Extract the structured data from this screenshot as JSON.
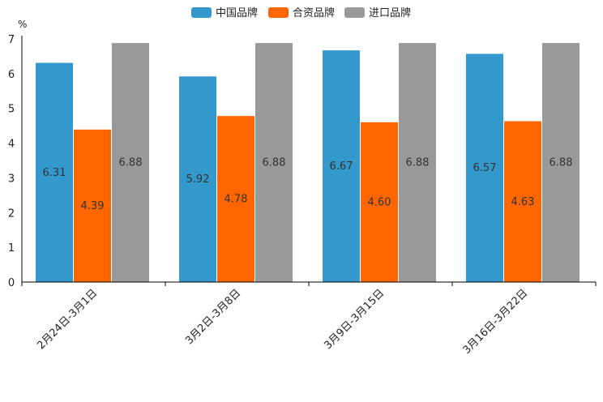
{
  "chart_data": {
    "type": "bar",
    "title": "",
    "ylabel": "%",
    "xlabel": "",
    "ylim": [
      0,
      7
    ],
    "yticks": [
      "0",
      "1",
      "2",
      "3",
      "4",
      "5",
      "6",
      "7"
    ],
    "categories": [
      "2月24日-3月1日",
      "3月2日-3月8日",
      "3月9日-3月15日",
      "3月16日-3月22日"
    ],
    "series": [
      {
        "name": "中国品牌",
        "color": "#3399cc",
        "values": [
          6.31,
          5.92,
          6.67,
          6.57
        ],
        "labels": [
          "6.31",
          "5.92",
          "6.67",
          "6.57"
        ]
      },
      {
        "name": "合资品牌",
        "color": "#ff6600",
        "values": [
          4.39,
          4.78,
          4.6,
          4.63
        ],
        "labels": [
          "4.39",
          "4.78",
          "4.60",
          "4.63"
        ]
      },
      {
        "name": "进口品牌",
        "color": "#999999",
        "values": [
          6.88,
          6.88,
          6.88,
          6.88
        ],
        "labels": [
          "6.88",
          "6.88",
          "6.88",
          "6.88"
        ]
      }
    ],
    "legend_position": "top-center",
    "grid": false
  }
}
